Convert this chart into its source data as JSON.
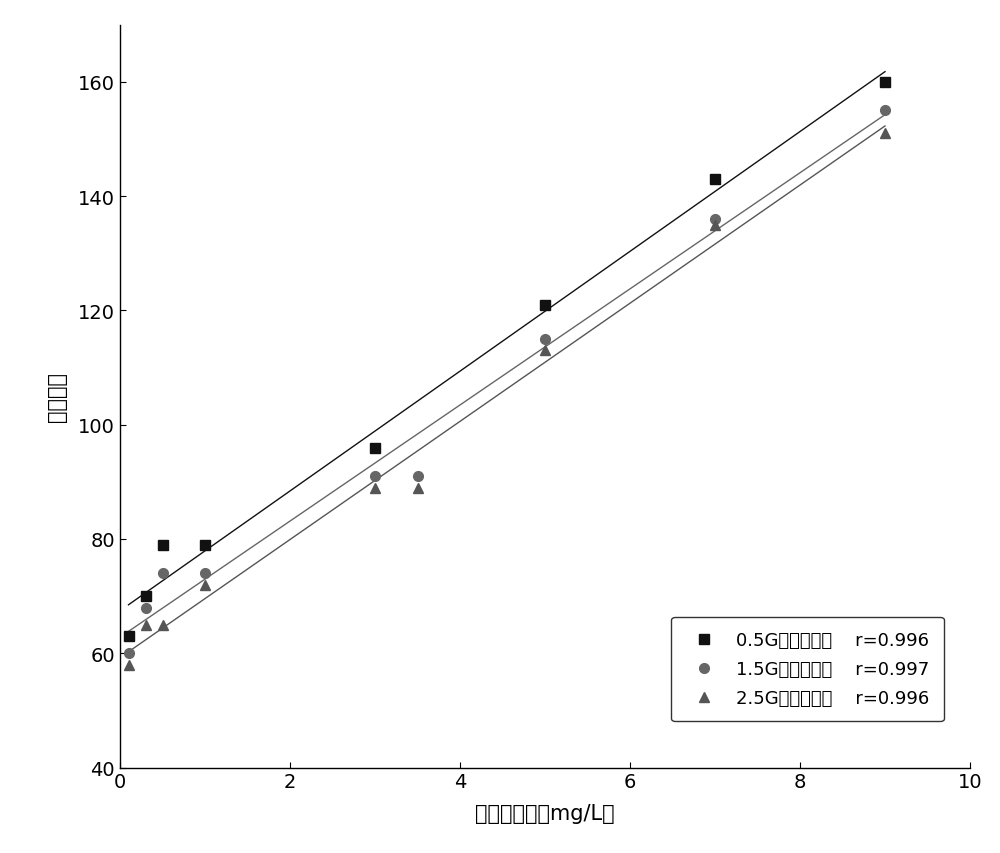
{
  "series": [
    {
      "label": "0.5G二乙烯三胺",
      "r_label": "r=0.996",
      "x": [
        0.1,
        0.3,
        0.5,
        1.0,
        3.0,
        5.0,
        7.0,
        9.0
      ],
      "y": [
        63,
        70,
        79,
        79,
        96,
        121,
        143,
        160
      ],
      "marker": "s",
      "color": "#111111",
      "linestyle": "-",
      "markersize": 7
    },
    {
      "label": "1.5G二乙烯三胺",
      "r_label": "r=0.997",
      "x": [
        0.1,
        0.3,
        0.5,
        1.0,
        3.0,
        3.5,
        5.0,
        7.0,
        9.0
      ],
      "y": [
        60,
        68,
        74,
        74,
        91,
        91,
        115,
        136,
        155
      ],
      "marker": "o",
      "color": "#666666",
      "linestyle": "-",
      "markersize": 7
    },
    {
      "label": "2.5G二乙烯三胺",
      "r_label": "r=0.996",
      "x": [
        0.1,
        0.3,
        0.5,
        1.0,
        3.0,
        3.5,
        5.0,
        7.0,
        9.0
      ],
      "y": [
        58,
        65,
        65,
        72,
        89,
        89,
        113,
        135,
        151
      ],
      "marker": "^",
      "color": "#555555",
      "linestyle": "-",
      "markersize": 7
    }
  ],
  "xlabel": "示踪剂浓度（mg/L）",
  "ylabel": "荧光强度",
  "xlim": [
    0,
    10
  ],
  "ylim": [
    40,
    170
  ],
  "xticks": [
    0,
    2,
    4,
    6,
    8,
    10
  ],
  "yticks": [
    40,
    60,
    80,
    100,
    120,
    140,
    160
  ],
  "background_color": "#ffffff",
  "label_fontsize": 15,
  "tick_fontsize": 14,
  "legend_fontsize": 13
}
